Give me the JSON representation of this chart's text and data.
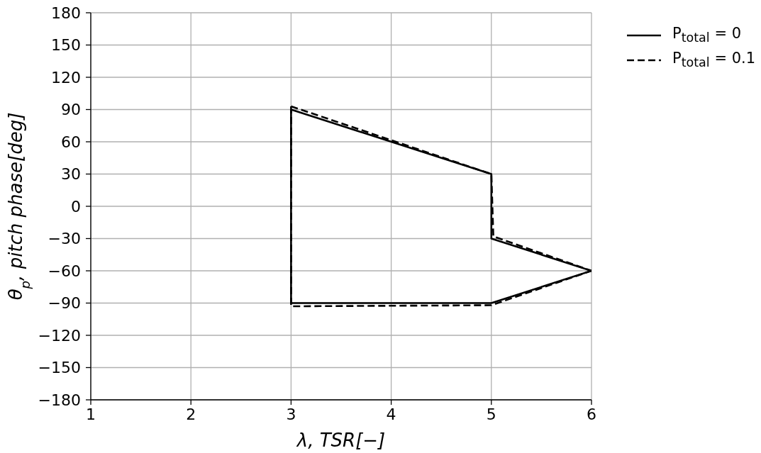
{
  "chart_data": {
    "type": "line",
    "xlabel": "λ, TSR[−]",
    "ylabel": "θ$_{p}$, pitch phase[deg]",
    "xlim": [
      1,
      6
    ],
    "xticks": [
      1,
      2,
      3,
      4,
      5,
      6
    ],
    "ylim": [
      -180,
      180
    ],
    "yticks": [
      {
        "value": -180,
        "label": "−180"
      },
      {
        "value": -150,
        "label": "−150"
      },
      {
        "value": -120,
        "label": "−120"
      },
      {
        "value": -90,
        "label": "−90"
      },
      {
        "value": -60,
        "label": "−60"
      },
      {
        "value": -30,
        "label": "−30"
      },
      0,
      30,
      60,
      90,
      120,
      150,
      180
    ],
    "grid": true,
    "legend": "top right",
    "series": [
      {
        "name": "P$_{total}$ = 0",
        "color": "#000000",
        "line_style": "solid",
        "x": [
          3,
          5,
          5,
          6
        ],
        "values": [
          90,
          30,
          -30,
          -60
        ]
      },
      {
        "color": "#000000",
        "line_style": "solid",
        "x": [
          3,
          3,
          5,
          6
        ],
        "values": [
          90,
          -90,
          -90,
          -60
        ]
      },
      {
        "name": "P$_{total}$ = 0.1",
        "color": "#000000",
        "line_style": "dashed",
        "x": [
          3,
          5,
          5.02,
          6
        ],
        "values": [
          93,
          30,
          -28,
          -60
        ]
      },
      {
        "color": "#000000",
        "line_style": "dashed",
        "x": [
          3,
          3,
          5,
          6
        ],
        "values": [
          93,
          -93,
          -92,
          -60
        ]
      }
    ]
  }
}
